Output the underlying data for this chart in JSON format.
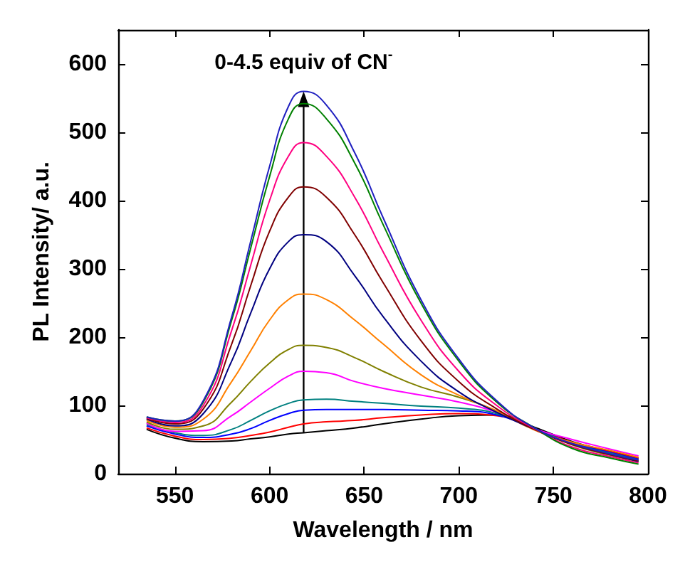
{
  "chart_data": {
    "type": "line",
    "xlabel": "Wavelength / nm",
    "ylabel": "PL Intensity/ a.u.",
    "x": [
      535,
      550,
      565,
      580,
      590,
      600,
      610,
      618,
      630,
      645,
      660,
      680,
      700,
      720,
      740,
      760,
      780,
      795
    ],
    "xlim": [
      520,
      800
    ],
    "xticks": [
      550,
      600,
      650,
      700,
      750,
      800
    ],
    "ylim": [
      0,
      650
    ],
    "yticks": [
      0,
      100,
      200,
      300,
      400,
      500,
      600
    ],
    "grid": false,
    "marker": "none",
    "line_style": "solid",
    "annotations": [
      {
        "text": "0-4.5 equiv of CN$^{-}$",
        "x": 618,
        "y": 560
      }
    ],
    "series": [
      {
        "color": "#000000",
        "values": [
          65,
          52,
          47,
          48,
          51,
          54,
          58,
          60,
          63,
          67,
          73,
          80,
          85,
          86,
          68,
          47,
          33,
          23
        ]
      },
      {
        "color": "#ff0000",
        "values": [
          67,
          55,
          50,
          52,
          56,
          61,
          68,
          73,
          76,
          78,
          82,
          86,
          88,
          85,
          66,
          46,
          32,
          22
        ]
      },
      {
        "color": "#0000ff",
        "values": [
          70,
          58,
          53,
          58,
          66,
          78,
          88,
          93,
          94,
          94,
          94,
          93,
          92,
          86,
          66,
          45,
          31,
          21
        ]
      },
      {
        "color": "#008080",
        "values": [
          72,
          60,
          56,
          65,
          78,
          92,
          103,
          108,
          109,
          106,
          103,
          99,
          96,
          88,
          66,
          44,
          30,
          20
        ]
      },
      {
        "color": "#ff00ff",
        "values": [
          74,
          62,
          63,
          85,
          105,
          125,
          143,
          150,
          148,
          135,
          125,
          115,
          105,
          90,
          66,
          50,
          36,
          26
        ]
      },
      {
        "color": "#808000",
        "values": [
          76,
          65,
          70,
          105,
          135,
          162,
          182,
          188,
          185,
          170,
          150,
          127,
          112,
          92,
          66,
          42,
          27,
          18
        ]
      },
      {
        "color": "#ff8000",
        "values": [
          78,
          68,
          80,
          135,
          180,
          225,
          255,
          263,
          255,
          225,
          190,
          145,
          115,
          92,
          64,
          46,
          34,
          24
        ]
      },
      {
        "color": "#000080",
        "values": [
          80,
          70,
          88,
          165,
          235,
          300,
          340,
          350,
          340,
          290,
          230,
          165,
          120,
          90,
          65,
          43,
          28,
          18
        ]
      },
      {
        "color": "#800000",
        "values": [
          81,
          73,
          95,
          190,
          275,
          355,
          405,
          420,
          405,
          350,
          280,
          195,
          135,
          95,
          65,
          43,
          28,
          19
        ]
      },
      {
        "color": "#ff0080",
        "values": [
          82,
          75,
          100,
          210,
          305,
          400,
          465,
          485,
          465,
          405,
          325,
          225,
          150,
          100,
          66,
          39,
          25,
          16
        ]
      },
      {
        "color": "#008000",
        "values": [
          83,
          77,
          105,
          225,
          330,
          435,
          520,
          542,
          520,
          455,
          365,
          250,
          165,
          105,
          67,
          37,
          23,
          14
        ]
      },
      {
        "color": "#2020c0",
        "values": [
          83,
          77,
          107,
          230,
          340,
          450,
          538,
          560,
          540,
          470,
          375,
          255,
          168,
          107,
          67,
          44,
          29,
          20
        ]
      }
    ]
  }
}
